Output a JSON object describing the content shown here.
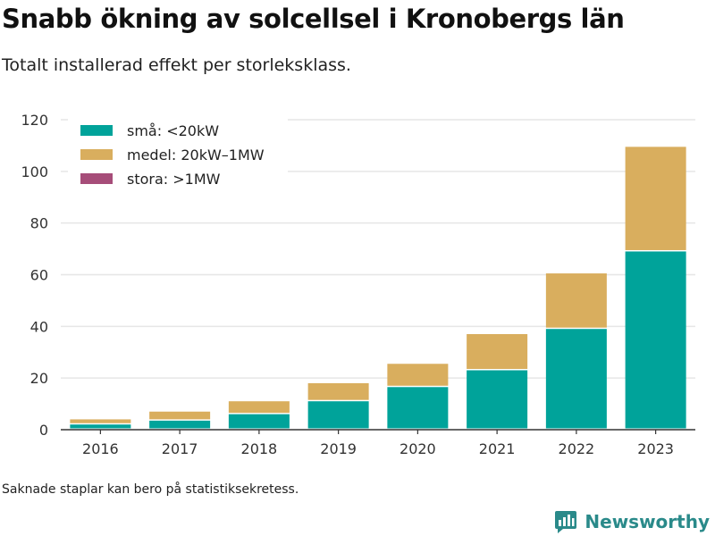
{
  "title": "Snabb ökning av solcellsel i Kronobergs län",
  "subtitle": "Totalt installerad effekt per storleksklass.",
  "note": "Saknade staplar kan bero på statistiksekretess.",
  "brand": {
    "name": "Newsworthy"
  },
  "colors": {
    "grid": "#e6e6e6",
    "axis": "#333333",
    "brand": "#2a8a8a"
  },
  "chart_data": {
    "type": "bar",
    "stacked": true,
    "categories": [
      "2016",
      "2017",
      "2018",
      "2019",
      "2020",
      "2021",
      "2022",
      "2023"
    ],
    "series": [
      {
        "name": "små: <20kW",
        "color": "#00a39a",
        "values": [
          2,
          3.5,
          6,
          11,
          16.5,
          23,
          39,
          69
        ]
      },
      {
        "name": "medel: 20kW–1MW",
        "color": "#d9ae5e",
        "values": [
          2,
          3.5,
          5,
          7,
          9,
          14,
          21.5,
          40.5
        ]
      },
      {
        "name": "stora: >1MW",
        "color": "#a64d79",
        "values": [
          0,
          0,
          0,
          0,
          0,
          0,
          0,
          0
        ]
      }
    ],
    "ylim": [
      0,
      120
    ],
    "yticks": [
      0,
      20,
      40,
      60,
      80,
      100,
      120
    ],
    "grid": true,
    "legend_position": "top-left"
  }
}
